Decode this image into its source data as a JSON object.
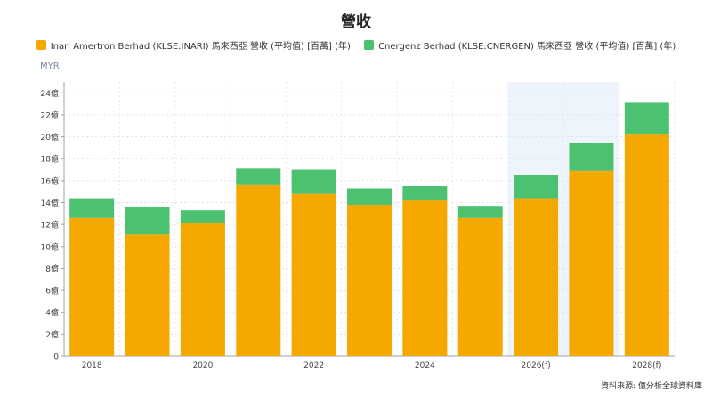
{
  "chart_data": {
    "type": "bar",
    "stacked": true,
    "title": "營收",
    "ylabel": "MYR",
    "ylim": [
      0,
      25
    ],
    "y_ticks": [
      "0",
      "2億",
      "4億",
      "6億",
      "8億",
      "10億",
      "12億",
      "14億",
      "16億",
      "18億",
      "20億",
      "22億",
      "24億"
    ],
    "x_tick_labels": [
      "2018",
      "",
      "2020",
      "",
      "2022",
      "",
      "2024",
      "",
      "2026(f)",
      "",
      "2028(f)"
    ],
    "forecast_shade_range": [
      8,
      9
    ],
    "grid": true,
    "legend_position": "top-center",
    "series": [
      {
        "name": "Inari Amertron Berhad (KLSE:INARI) 馬來西亞 營收 (平均值) [百萬] (年)",
        "color": "#f5a800",
        "values": [
          12.6,
          11.1,
          12.1,
          15.6,
          14.8,
          13.8,
          14.2,
          12.6,
          14.4,
          16.9,
          20.2
        ]
      },
      {
        "name": "Cnergenz Berhad (KLSE:CNERGEN) 馬來西亞 營收 (平均值) [百萬] (年)",
        "color": "#4cc170",
        "values": [
          1.8,
          2.5,
          1.2,
          1.5,
          2.2,
          1.5,
          1.3,
          1.1,
          2.1,
          2.5,
          2.9
        ]
      }
    ],
    "source": "資料來源: 億分析全球資料庫"
  }
}
